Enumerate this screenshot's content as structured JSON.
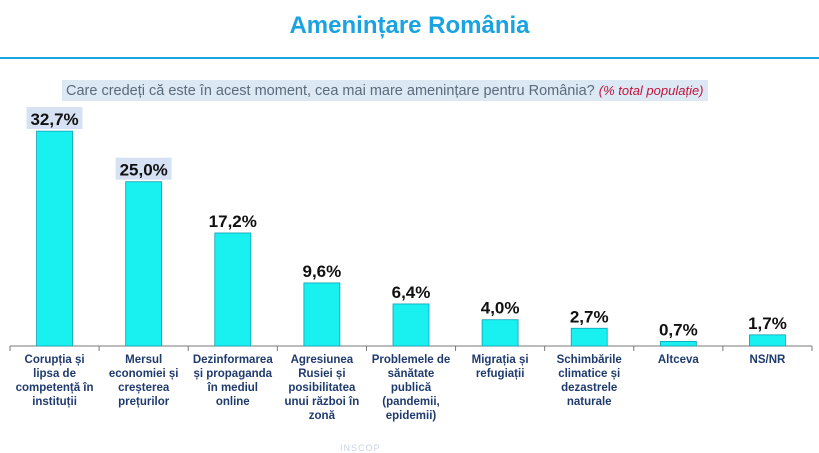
{
  "title": "Amenințare România",
  "question": {
    "text": "Care credeți că este în acest moment, cea mai mare amenințare pentru România?",
    "note": "(% total populație)"
  },
  "colors": {
    "title": "#1aa3e0",
    "bar": "#19f0f0",
    "bar_outline": "#0f9fb5",
    "highlight": "#d6e2f3"
  },
  "chart_data": {
    "type": "bar",
    "title": "Amenințare România",
    "xlabel": "",
    "ylabel": "",
    "grid": false,
    "legend": "none",
    "ylim": [
      0,
      35
    ],
    "categories": [
      [
        "Corupția și",
        "lipsa de",
        "competență în",
        "instituții"
      ],
      [
        "Mersul",
        "economiei și",
        "creșterea",
        "prețurilor"
      ],
      [
        "Dezinformarea",
        "și propaganda",
        "în mediul",
        "online"
      ],
      [
        "Agresiunea",
        "Rusiei și",
        "posibilitatea",
        "unui război în",
        "zonă"
      ],
      [
        "Problemele de",
        "sănătate",
        "publică",
        "(pandemii,",
        "epidemii)"
      ],
      [
        "Migrația și",
        "refugiații"
      ],
      [
        "Schimbările",
        "climatice și",
        "dezastrele",
        "naturale"
      ],
      [
        "Altceva"
      ],
      [
        "NS/NR"
      ]
    ],
    "values": [
      32.7,
      25.0,
      17.2,
      9.6,
      6.4,
      4.0,
      2.7,
      0.7,
      1.7
    ],
    "value_labels": [
      "32,7%",
      "25,0%",
      "17,2%",
      "9,6%",
      "6,4%",
      "4,0%",
      "2,7%",
      "0,7%",
      "1,7%"
    ],
    "highlighted": [
      0,
      1
    ]
  },
  "footer": "INSCOP"
}
